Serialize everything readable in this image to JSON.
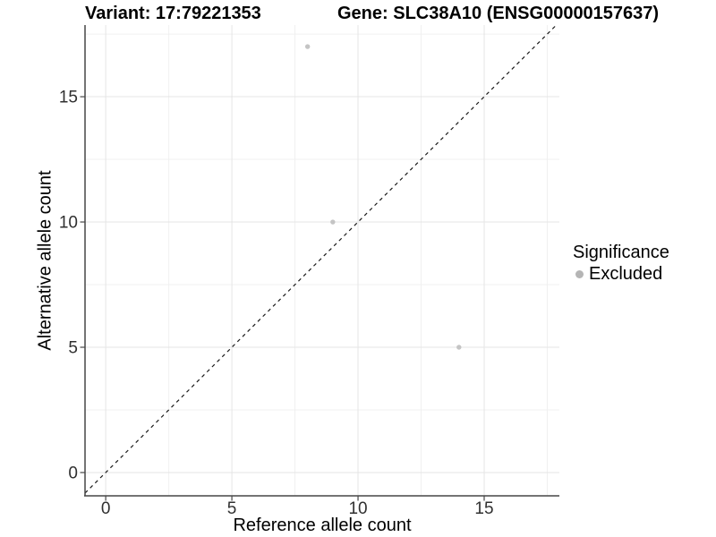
{
  "chart_data": {
    "type": "scatter",
    "title_left": "Variant: 17:79221353",
    "title_right": "Gene: SLC38A10 (ENSG00000157637)",
    "xlabel": "Reference allele count",
    "ylabel": "Alternative allele count",
    "xlim": [
      -0.82,
      17.98
    ],
    "ylim": [
      -0.93,
      17.86
    ],
    "x_ticks": [
      0,
      5,
      10,
      15
    ],
    "y_ticks": [
      0,
      5,
      10,
      15
    ],
    "x_minor_gridlines": [
      2.5,
      7.5,
      12.5,
      17.5
    ],
    "y_minor_gridlines": [
      2.5,
      7.5,
      12.5,
      17.5
    ],
    "grid": true,
    "legend": {
      "position": "right",
      "title": "Significance",
      "items": [
        {
          "label": "Excluded",
          "color": "#b5b5b5"
        }
      ]
    },
    "series": [
      {
        "name": "Excluded",
        "color": "#c4c4c4",
        "points": [
          {
            "x": 8,
            "y": 17
          },
          {
            "x": 9,
            "y": 10
          },
          {
            "x": 14,
            "y": 5
          }
        ]
      }
    ],
    "reference_line": {
      "type": "identity",
      "style": "dashed",
      "color": "#1a1a1a"
    },
    "colors": {
      "background": "#ffffff",
      "major_grid": "#e5e5e5",
      "minor_grid": "#f0f0f0",
      "axis_line": "#474747",
      "tick_label": "#303030",
      "point": "#c4c4c4"
    }
  }
}
